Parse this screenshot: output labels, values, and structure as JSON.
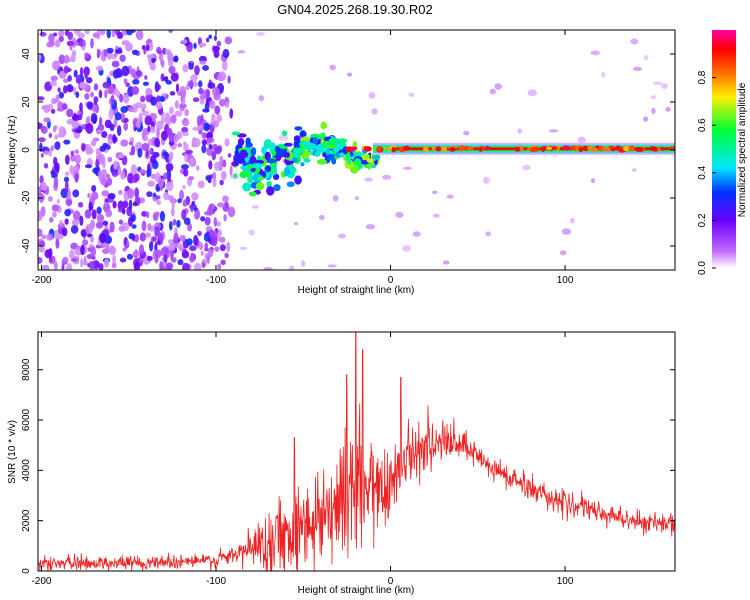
{
  "figure_title": "GN04.2025.268.19.30.R02",
  "chart_data": [
    {
      "type": "heatmap",
      "xlabel": "Height of straight line (km)",
      "ylabel": "Frequency (Hz)",
      "xlim": [
        -202,
        163
      ],
      "ylim": [
        -50,
        50
      ],
      "x_ticks": [
        -200,
        -100,
        0,
        100
      ],
      "x_tick_labels": [
        "-200",
        "-100",
        "0",
        "100"
      ],
      "y_ticks": [
        -40,
        -20,
        0,
        20,
        40
      ],
      "y_tick_labels": [
        "-40",
        "-20",
        "0",
        "20",
        "40"
      ],
      "colorbar": {
        "label": "Normalized spectral amplitude",
        "range": [
          0,
          1
        ],
        "ticks": [
          0.0,
          0.2,
          0.4,
          0.6,
          0.8
        ],
        "tick_labels": [
          "0.0",
          "0.2",
          "0.4",
          "0.6",
          "0.8"
        ],
        "colormap": "rainbow (white-violet-blue-cyan-green-yellow-red-magenta)"
      },
      "regions": [
        {
          "x_range": [
            -202,
            -88
          ],
          "description": "broadband noise, amplitude ~0.05-0.3 across -50..50 Hz"
        },
        {
          "x_range": [
            -88,
            -10
          ],
          "description": "signal emerging near 0 Hz, amplitude ~0.3-0.6, frequency wander +-8 Hz"
        },
        {
          "x_range": [
            -10,
            163
          ],
          "description": "narrow line at ~0.5 Hz, amplitude ~0.9-1.0"
        }
      ]
    },
    {
      "type": "line",
      "xlabel": "Height of straight line (km)",
      "ylabel": "SNR (10 * v/v)",
      "xlim": [
        -202,
        163
      ],
      "ylim": [
        0,
        9500
      ],
      "x_ticks": [
        -200,
        -100,
        0,
        100
      ],
      "x_tick_labels": [
        "-200",
        "-100",
        "0",
        "100"
      ],
      "y_ticks": [
        0,
        2000,
        4000,
        6000,
        8000
      ],
      "y_tick_labels": [
        "0",
        "2000",
        "4000",
        "6000",
        "8000"
      ],
      "series": [
        {
          "name": "SNR",
          "color": "#ee2222",
          "envelope_x": [
            -202,
            -150,
            -100,
            -90,
            -80,
            -70,
            -60,
            -50,
            -40,
            -30,
            -20,
            -10,
            0,
            10,
            20,
            30,
            40,
            50,
            60,
            80,
            100,
            120,
            140,
            163
          ],
          "envelope_mean": [
            300,
            330,
            420,
            600,
            900,
            1200,
            1500,
            1800,
            2300,
            2800,
            3000,
            3200,
            3600,
            4600,
            5000,
            5100,
            5000,
            4500,
            4000,
            3300,
            2700,
            2300,
            2000,
            1800
          ],
          "noise_amplitude": [
            250,
            250,
            280,
            400,
            700,
            1200,
            1400,
            1600,
            1900,
            2300,
            2600,
            2300,
            1600,
            900,
            800,
            750,
            650,
            550,
            500,
            450,
            420,
            420,
            400,
            400
          ],
          "spikes": [
            {
              "x": -55,
              "y": 5300
            },
            {
              "x": -20,
              "y": 9500
            },
            {
              "x": -16,
              "y": 8800
            },
            {
              "x": -25,
              "y": 7800
            },
            {
              "x": 6,
              "y": 7700
            }
          ]
        }
      ]
    }
  ]
}
